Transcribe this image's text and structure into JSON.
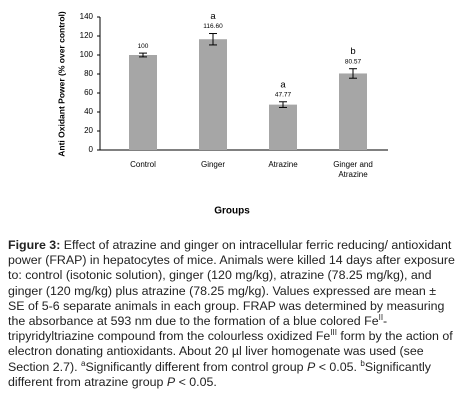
{
  "chart_data": {
    "type": "bar",
    "y_label": "Anti Oxidant Power (% over control)",
    "x_label": "Groups",
    "categories": [
      "Control",
      "Ginger",
      "Atrazine",
      "Ginger and Atrazine"
    ],
    "values": [
      100,
      116.6,
      47.77,
      80.57
    ],
    "value_labels": [
      "100",
      "116.60",
      "47.77",
      "80.57"
    ],
    "errors": [
      2,
      6,
      3,
      5
    ],
    "significance": [
      null,
      "a",
      "a",
      "b"
    ],
    "color": "#a6a6a6",
    "ylim": [
      0,
      140
    ],
    "yticks": [
      0,
      20,
      40,
      60,
      80,
      100,
      120,
      140
    ],
    "grid": false
  },
  "caption": {
    "label": "Figure 3:",
    "segments": [
      {
        "text": " Effect of atrazine and ginger on intracellular ferric reducing/ antioxidant power (FRAP) in hepatocytes of mice. Animals were killed 14 days after exposure to: control (isotonic solution), ginger (120 mg/kg), atrazine (78.25 mg/kg), and ginger (120 mg/kg) plus atrazine (78.25 mg/kg). Values expressed are mean ± SE of 5-6 separate animals in each group. FRAP was determined by measuring the absorbance at 593 nm due to the formation of a blue colored Fe",
        "style": null
      },
      {
        "text": "II",
        "style": "sup"
      },
      {
        "text": "-tripyridyltriazine compound from the colourless oxidized Fe",
        "style": null
      },
      {
        "text": "III",
        "style": "sup"
      },
      {
        "text": " form by the action of electron donating antioxidants. About 20 µl liver homogenate was used (see Section 2.7). ",
        "style": null
      },
      {
        "text": "a",
        "style": "sup"
      },
      {
        "text": "Significantly different from control group ",
        "style": null
      },
      {
        "text": "P",
        "style": "i"
      },
      {
        "text": " < 0.05. ",
        "style": null
      },
      {
        "text": "b",
        "style": "sup"
      },
      {
        "text": "Significantly different from atrazine group ",
        "style": null
      },
      {
        "text": "P",
        "style": "i"
      },
      {
        "text": " < 0.05.",
        "style": null
      }
    ]
  }
}
